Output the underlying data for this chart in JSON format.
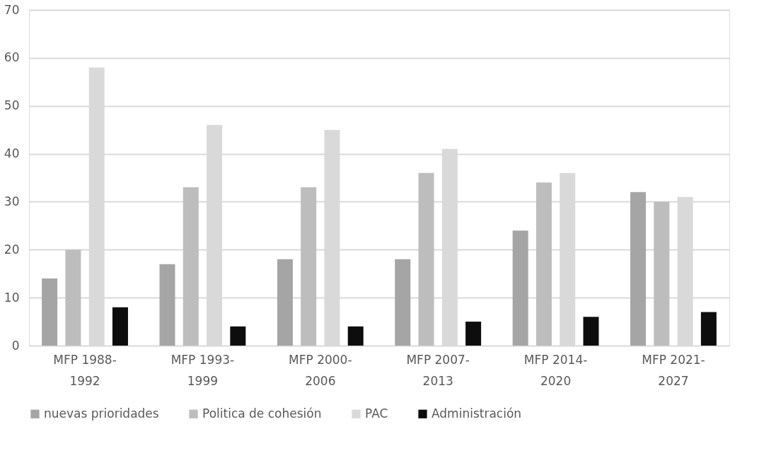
{
  "chart_data": {
    "type": "bar",
    "categories": [
      "MFP 1988-\n1992",
      "MFP 1993-\n1999",
      "MFP 2000-\n2006",
      "MFP 2007-\n2013",
      "MFP 2014-\n2020",
      "MFP 2021-\n2027"
    ],
    "series": [
      {
        "name": "nuevas prioridades",
        "color": "#a5a5a5",
        "values": [
          14,
          17,
          18,
          18,
          24,
          32
        ]
      },
      {
        "name": "Politica de cohesión",
        "color": "#bdbdbd",
        "values": [
          20,
          33,
          33,
          36,
          34,
          30
        ]
      },
      {
        "name": "PAC",
        "color": "#d9d9d9",
        "values": [
          58,
          46,
          45,
          41,
          36,
          31
        ]
      },
      {
        "name": "Administración",
        "color": "#0d0d0d",
        "values": [
          8,
          4,
          4,
          5,
          6,
          7
        ]
      }
    ],
    "ylim": [
      0,
      70
    ],
    "yticks": [
      0,
      10,
      20,
      30,
      40,
      50,
      60,
      70
    ],
    "grid": "y",
    "legend": "bottom"
  }
}
